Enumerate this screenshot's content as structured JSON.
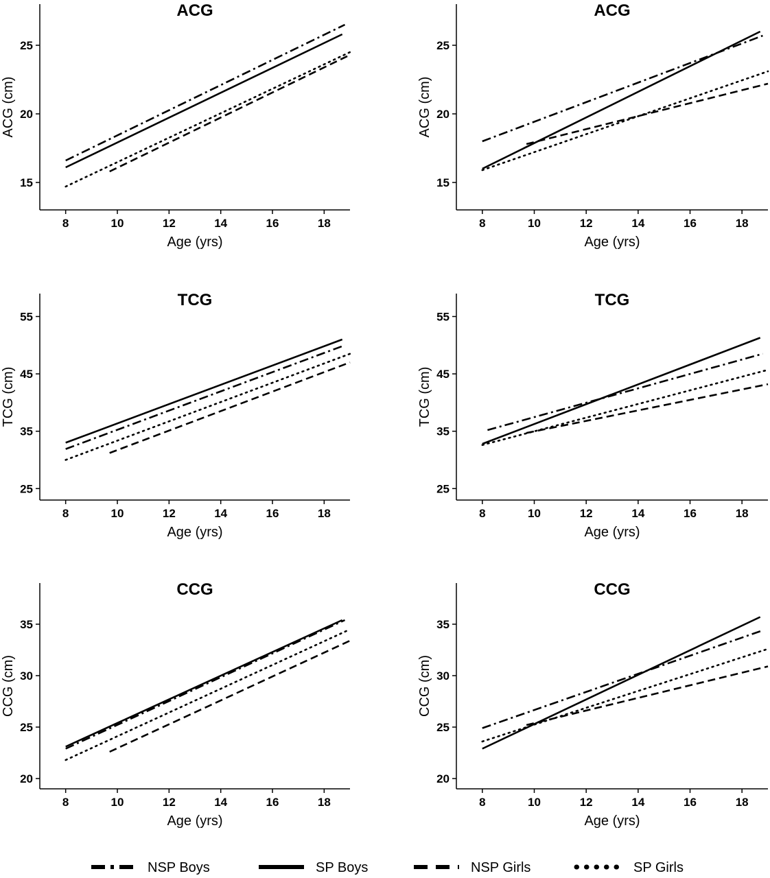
{
  "chart_data": [
    {
      "type": "line",
      "title": "ACG",
      "xlabel": "Age (yrs)",
      "ylabel": "ACG (cm)",
      "xlim": [
        7,
        19
      ],
      "ylim": [
        13,
        28
      ],
      "xticks": [
        8,
        10,
        12,
        14,
        16,
        18
      ],
      "yticks": [
        15,
        20,
        25
      ],
      "series": [
        {
          "name": "NSP Boys",
          "x": [
            8,
            18.8
          ],
          "y": [
            16.6,
            26.5
          ]
        },
        {
          "name": "SP Boys",
          "x": [
            8,
            18.7
          ],
          "y": [
            16.1,
            25.8
          ]
        },
        {
          "name": "NSP Girls",
          "x": [
            9.7,
            19
          ],
          "y": [
            15.8,
            24.3
          ]
        },
        {
          "name": "SP Girls",
          "x": [
            8,
            19
          ],
          "y": [
            14.7,
            24.5
          ]
        }
      ]
    },
    {
      "type": "line",
      "title": "ACG",
      "xlabel": "Age (yrs)",
      "ylabel": "ACG (cm)",
      "xlim": [
        7,
        19
      ],
      "ylim": [
        13,
        28
      ],
      "xticks": [
        8,
        10,
        12,
        14,
        16,
        18
      ],
      "yticks": [
        15,
        20,
        25
      ],
      "series": [
        {
          "name": "NSP Boys",
          "x": [
            8,
            18.8
          ],
          "y": [
            18.0,
            25.7
          ]
        },
        {
          "name": "SP Boys",
          "x": [
            8,
            18.7
          ],
          "y": [
            16.0,
            26.0
          ]
        },
        {
          "name": "NSP Girls",
          "x": [
            9.7,
            19
          ],
          "y": [
            17.8,
            22.2
          ]
        },
        {
          "name": "SP Girls",
          "x": [
            8,
            19
          ],
          "y": [
            15.9,
            23.1
          ]
        }
      ]
    },
    {
      "type": "line",
      "title": "TCG",
      "xlabel": "Age (yrs)",
      "ylabel": "TCG (cm)",
      "xlim": [
        7,
        19
      ],
      "ylim": [
        23,
        59
      ],
      "xticks": [
        8,
        10,
        12,
        14,
        16,
        18
      ],
      "yticks": [
        25,
        35,
        45,
        55
      ],
      "series": [
        {
          "name": "NSP Boys",
          "x": [
            8,
            18.8
          ],
          "y": [
            31.9,
            50.0
          ]
        },
        {
          "name": "SP Boys",
          "x": [
            8,
            18.7
          ],
          "y": [
            33.0,
            51.0
          ]
        },
        {
          "name": "NSP Girls",
          "x": [
            9.7,
            19
          ],
          "y": [
            31.2,
            47.0
          ]
        },
        {
          "name": "SP Girls",
          "x": [
            8,
            19
          ],
          "y": [
            30.0,
            48.5
          ]
        }
      ]
    },
    {
      "type": "line",
      "title": "TCG",
      "xlabel": "Age (yrs)",
      "ylabel": "TCG (cm)",
      "xlim": [
        7,
        19
      ],
      "ylim": [
        23,
        59
      ],
      "xticks": [
        8,
        10,
        12,
        14,
        16,
        18
      ],
      "yticks": [
        25,
        35,
        45,
        55
      ],
      "series": [
        {
          "name": "NSP Boys",
          "x": [
            8.2,
            18.8
          ],
          "y": [
            35.2,
            48.5
          ]
        },
        {
          "name": "SP Boys",
          "x": [
            8,
            18.7
          ],
          "y": [
            32.8,
            51.3
          ]
        },
        {
          "name": "NSP Girls",
          "x": [
            9.7,
            19
          ],
          "y": [
            34.7,
            43.2
          ]
        },
        {
          "name": "SP Girls",
          "x": [
            8,
            19
          ],
          "y": [
            32.6,
            45.7
          ]
        }
      ]
    },
    {
      "type": "line",
      "title": "CCG",
      "xlabel": "Age (yrs)",
      "ylabel": "CCG (cm)",
      "xlim": [
        7,
        19
      ],
      "ylim": [
        19,
        39
      ],
      "xticks": [
        8,
        10,
        12,
        14,
        16,
        18
      ],
      "yticks": [
        20,
        25,
        30,
        35
      ],
      "series": [
        {
          "name": "NSP Boys",
          "x": [
            8,
            18.8
          ],
          "y": [
            22.9,
            35.4
          ]
        },
        {
          "name": "SP Boys",
          "x": [
            8,
            18.7
          ],
          "y": [
            23.1,
            35.4
          ]
        },
        {
          "name": "NSP Girls",
          "x": [
            9.7,
            19
          ],
          "y": [
            22.6,
            33.4
          ]
        },
        {
          "name": "SP Girls",
          "x": [
            8,
            19
          ],
          "y": [
            21.8,
            34.5
          ]
        }
      ]
    },
    {
      "type": "line",
      "title": "CCG",
      "xlabel": "Age (yrs)",
      "ylabel": "CCG (cm)",
      "xlim": [
        7,
        19
      ],
      "ylim": [
        19,
        39
      ],
      "xticks": [
        8,
        10,
        12,
        14,
        16,
        18
      ],
      "yticks": [
        20,
        25,
        30,
        35
      ],
      "series": [
        {
          "name": "NSP Boys",
          "x": [
            8,
            18.8
          ],
          "y": [
            24.9,
            34.4
          ]
        },
        {
          "name": "SP Boys",
          "x": [
            8,
            18.7
          ],
          "y": [
            22.9,
            35.7
          ]
        },
        {
          "name": "NSP Girls",
          "x": [
            9.7,
            19
          ],
          "y": [
            25.2,
            30.9
          ]
        },
        {
          "name": "SP Girls",
          "x": [
            8,
            19
          ],
          "y": [
            23.6,
            32.6
          ]
        }
      ]
    }
  ],
  "legend": {
    "position": "bottom",
    "items": [
      {
        "name": "NSP Boys",
        "dash": "dashdot"
      },
      {
        "name": "SP Boys",
        "dash": "solid"
      },
      {
        "name": "NSP Girls",
        "dash": "dashed"
      },
      {
        "name": "SP Girls",
        "dash": "dotted"
      }
    ]
  },
  "colors": {
    "line": "#000000",
    "background": "#ffffff"
  }
}
